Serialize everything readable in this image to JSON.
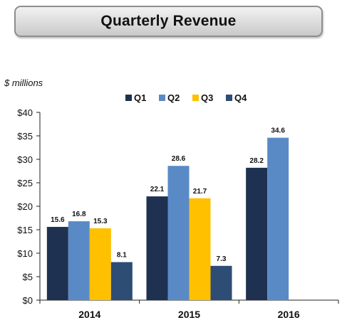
{
  "page": {
    "title": "Quarterly Revenue",
    "unit_label": "$ millions"
  },
  "chart_data": {
    "type": "bar",
    "title": "Quarterly Revenue",
    "ylabel": "$ millions",
    "xlabel": "",
    "categories": [
      "2014",
      "2015",
      "2016"
    ],
    "ylim": [
      0,
      40
    ],
    "yticks": [
      "$0",
      "$5",
      "$10",
      "$15",
      "$20",
      "$25",
      "$30",
      "$35",
      "$40"
    ],
    "legend_position": "top",
    "grid": false,
    "series": [
      {
        "name": "Q1",
        "color": "#1f3150",
        "values": [
          15.6,
          22.1,
          28.2
        ]
      },
      {
        "name": "Q2",
        "color": "#5a8ac6",
        "values": [
          16.8,
          28.6,
          34.6
        ]
      },
      {
        "name": "Q3",
        "color": "#ffc000",
        "values": [
          15.3,
          21.7,
          null
        ]
      },
      {
        "name": "Q4",
        "color": "#2e4d75",
        "values": [
          8.1,
          7.3,
          null
        ]
      }
    ]
  }
}
